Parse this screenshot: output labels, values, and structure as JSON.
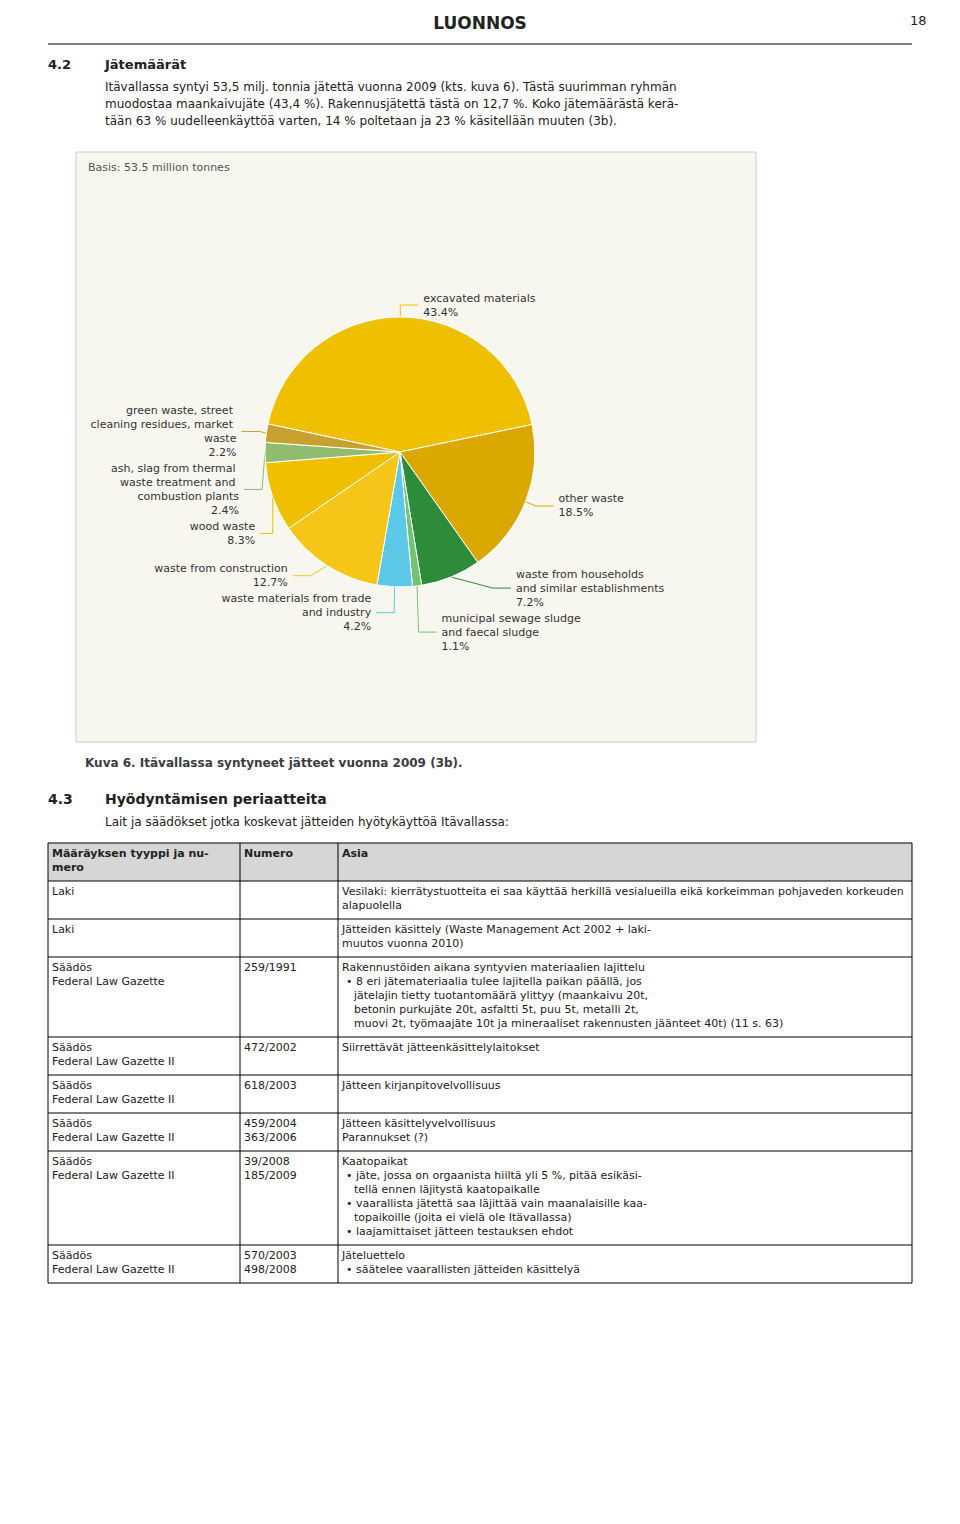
{
  "page": {
    "page_number": "18",
    "header": "LUONNOS",
    "sections": [
      {
        "number": "4.2",
        "title": "Jätemäärät",
        "body": [
          "Itävallassa syntyi 53,5 milj. tonnia jätettä vuonna 2009 (kts. kuva 6). Tästä suurimman ryhmän",
          "muodostaa maankaivujäte (43,4 %). Rakennusjätettä tästä on 12,7 %. Koko jätemäärästä kerä-",
          "tään 63 % uudelleenkäyttöä varten, 14 % poltetaan ja 23 % käsitellään muuten (3b)."
        ]
      },
      {
        "number": "4.3",
        "title": "Hyödyntämisen periaatteita",
        "body": [
          "Lait ja säädökset jotka koskevat jätteiden hyötykäyttöä Itävallassa:"
        ]
      }
    ],
    "table": {
      "columns": [
        "Määräyksen tyyppi ja nu-\nmero",
        "Numero",
        "Asia"
      ],
      "rows": [
        [
          "Laki",
          null,
          [
            "Vesilaki: kierrätystuotteita ei saa käyttää herkillä vesialueilla eikä korkeimman pohjaveden korkeuden alapuolella"
          ]
        ],
        [
          "Laki",
          null,
          [
            "Jätteiden käsittely (Waste Management Act 2002 + laki-",
            "muutos vuonna 2010)"
          ]
        ],
        [
          "Säädös\nFederal Law Gazette",
          "259/1991",
          [
            "Rakennustöiden aikana syntyvien materiaalien lajittelu",
            "• 8 eri jätemateriaalia tulee lajitella paikan päällä, jos",
            "jätelajin tietty tuotantomäärä ylittyy (maankaivu 20t,",
            "betonin purkujäte 20t, asfaltti 5t, puu 5t, metalli 2t,",
            "muovi 2t, työmaajäte 10t ja mineraaliset rakennusten jäänteet 40t) (11 s. 63)"
          ]
        ],
        [
          "Säädös\nFederal Law Gazette II",
          "472/2002",
          [
            "Siirrettävät jätteenkäsittelylaitokset"
          ]
        ],
        [
          "Säädös\nFederal Law Gazette II",
          "618/2003",
          [
            "Jätteen kirjanpitovelvollisuus"
          ]
        ],
        [
          "Säädös\nFederal Law Gazette II",
          "459/2004\n363/2006",
          [
            "Jätteen käsittelyvelvollisuus",
            "Parannukset (?)"
          ]
        ],
        [
          "Säädös\nFederal Law Gazette II",
          "39/2008\n185/2009",
          [
            "Kaatopaikat",
            "• jäte, jossa on orgaanista hiiltä yli 5 %, pitää esikäsi-",
            "tellä ennen läjitystä kaatopaikalle",
            "• vaarallista jätettä saa läjittää vain maanalaisille kaa-",
            "topaikoille (joita ei vielä ole Itävallassa)",
            "• laajamittaiset jätteen testauksen ehdot"
          ]
        ],
        [
          "Säädös\nFederal Law Gazette II",
          "570/2003\n498/2008",
          [
            "Jäteluettelo",
            "• säätelee vaarallisten jätteiden käsittelyä"
          ]
        ]
      ]
    }
  },
  "chart_data": {
    "type": "pie",
    "title": "Kuva 6. Itävallassa syntyneet jätteet vuonna 2009 (3b).",
    "subtitle": "Basis: 53.5 million tonnes",
    "categories": [
      "excavated materials",
      "other waste",
      "waste from households and similar establishments",
      "municipal sewage sludge and faecal sludge",
      "waste materials from trade and industry",
      "waste from construction",
      "wood waste",
      "ash, slag from thermal waste treatment and combustion plants",
      "green waste, street cleaning residues, market waste"
    ],
    "values": [
      43.4,
      18.5,
      7.2,
      1.1,
      4.2,
      12.7,
      8.3,
      2.4,
      2.2
    ],
    "value_labels": [
      "43.4%",
      "18.5%",
      "7.2%",
      "1.1%",
      "4.2%",
      "12.7%",
      "8.3%",
      "2.4%",
      "2.2%"
    ],
    "colors": [
      "#f0c000",
      "#dba800",
      "#2d8b3a",
      "#72c472",
      "#5bc8e8",
      "#f5c518",
      "#f0c000",
      "#8fbc6f",
      "#c8a030"
    ],
    "data_labels": true
  }
}
